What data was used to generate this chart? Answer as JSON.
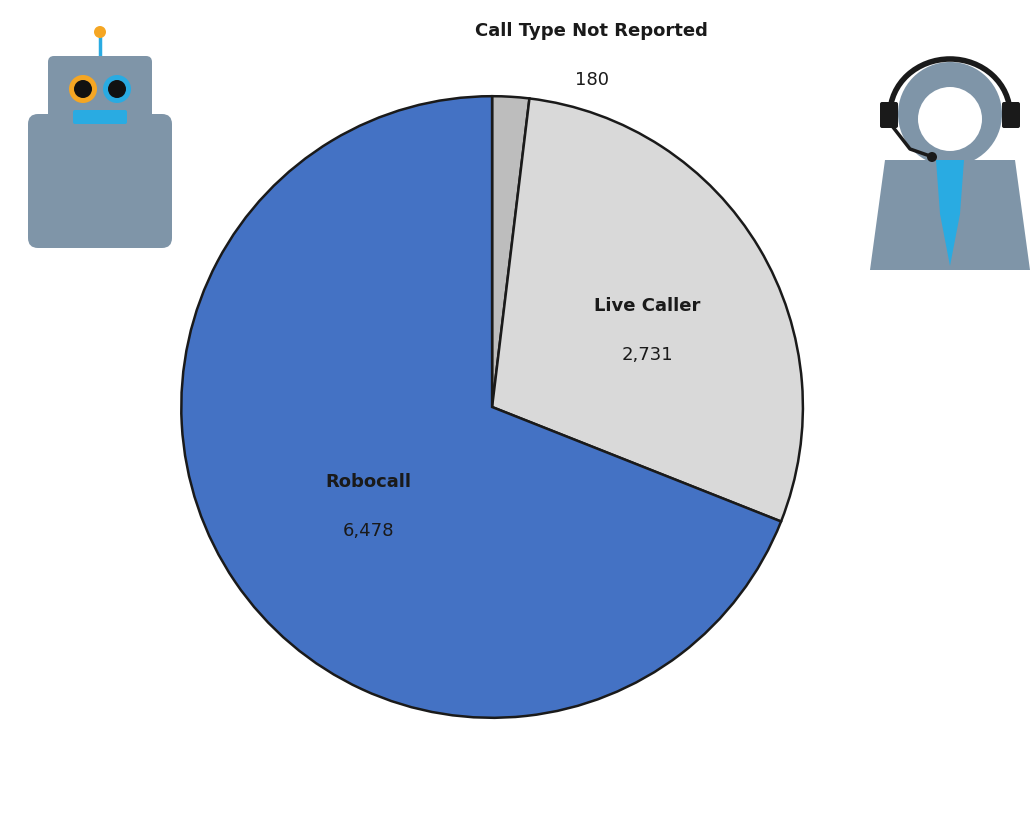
{
  "values": [
    180,
    2731,
    6478
  ],
  "colors": [
    "#bdbdbd",
    "#d9d9d9",
    "#4472c4"
  ],
  "edge_color": "#1a1a1a",
  "edge_width": 1.8,
  "startangle": 90,
  "figsize": [
    10.36,
    8.14
  ],
  "dpi": 100,
  "robot_color": "#7f95a8",
  "robot_eye_orange": "#f5a623",
  "robot_eye_blue": "#29abe2",
  "robot_mouth_color": "#29abe2",
  "robot_antenna_color": "#29abe2",
  "robot_antenna_ball": "#f5a623",
  "person_color": "#7f95a8",
  "person_tie_color": "#29abe2",
  "person_headset_color": "#1a1a1a"
}
